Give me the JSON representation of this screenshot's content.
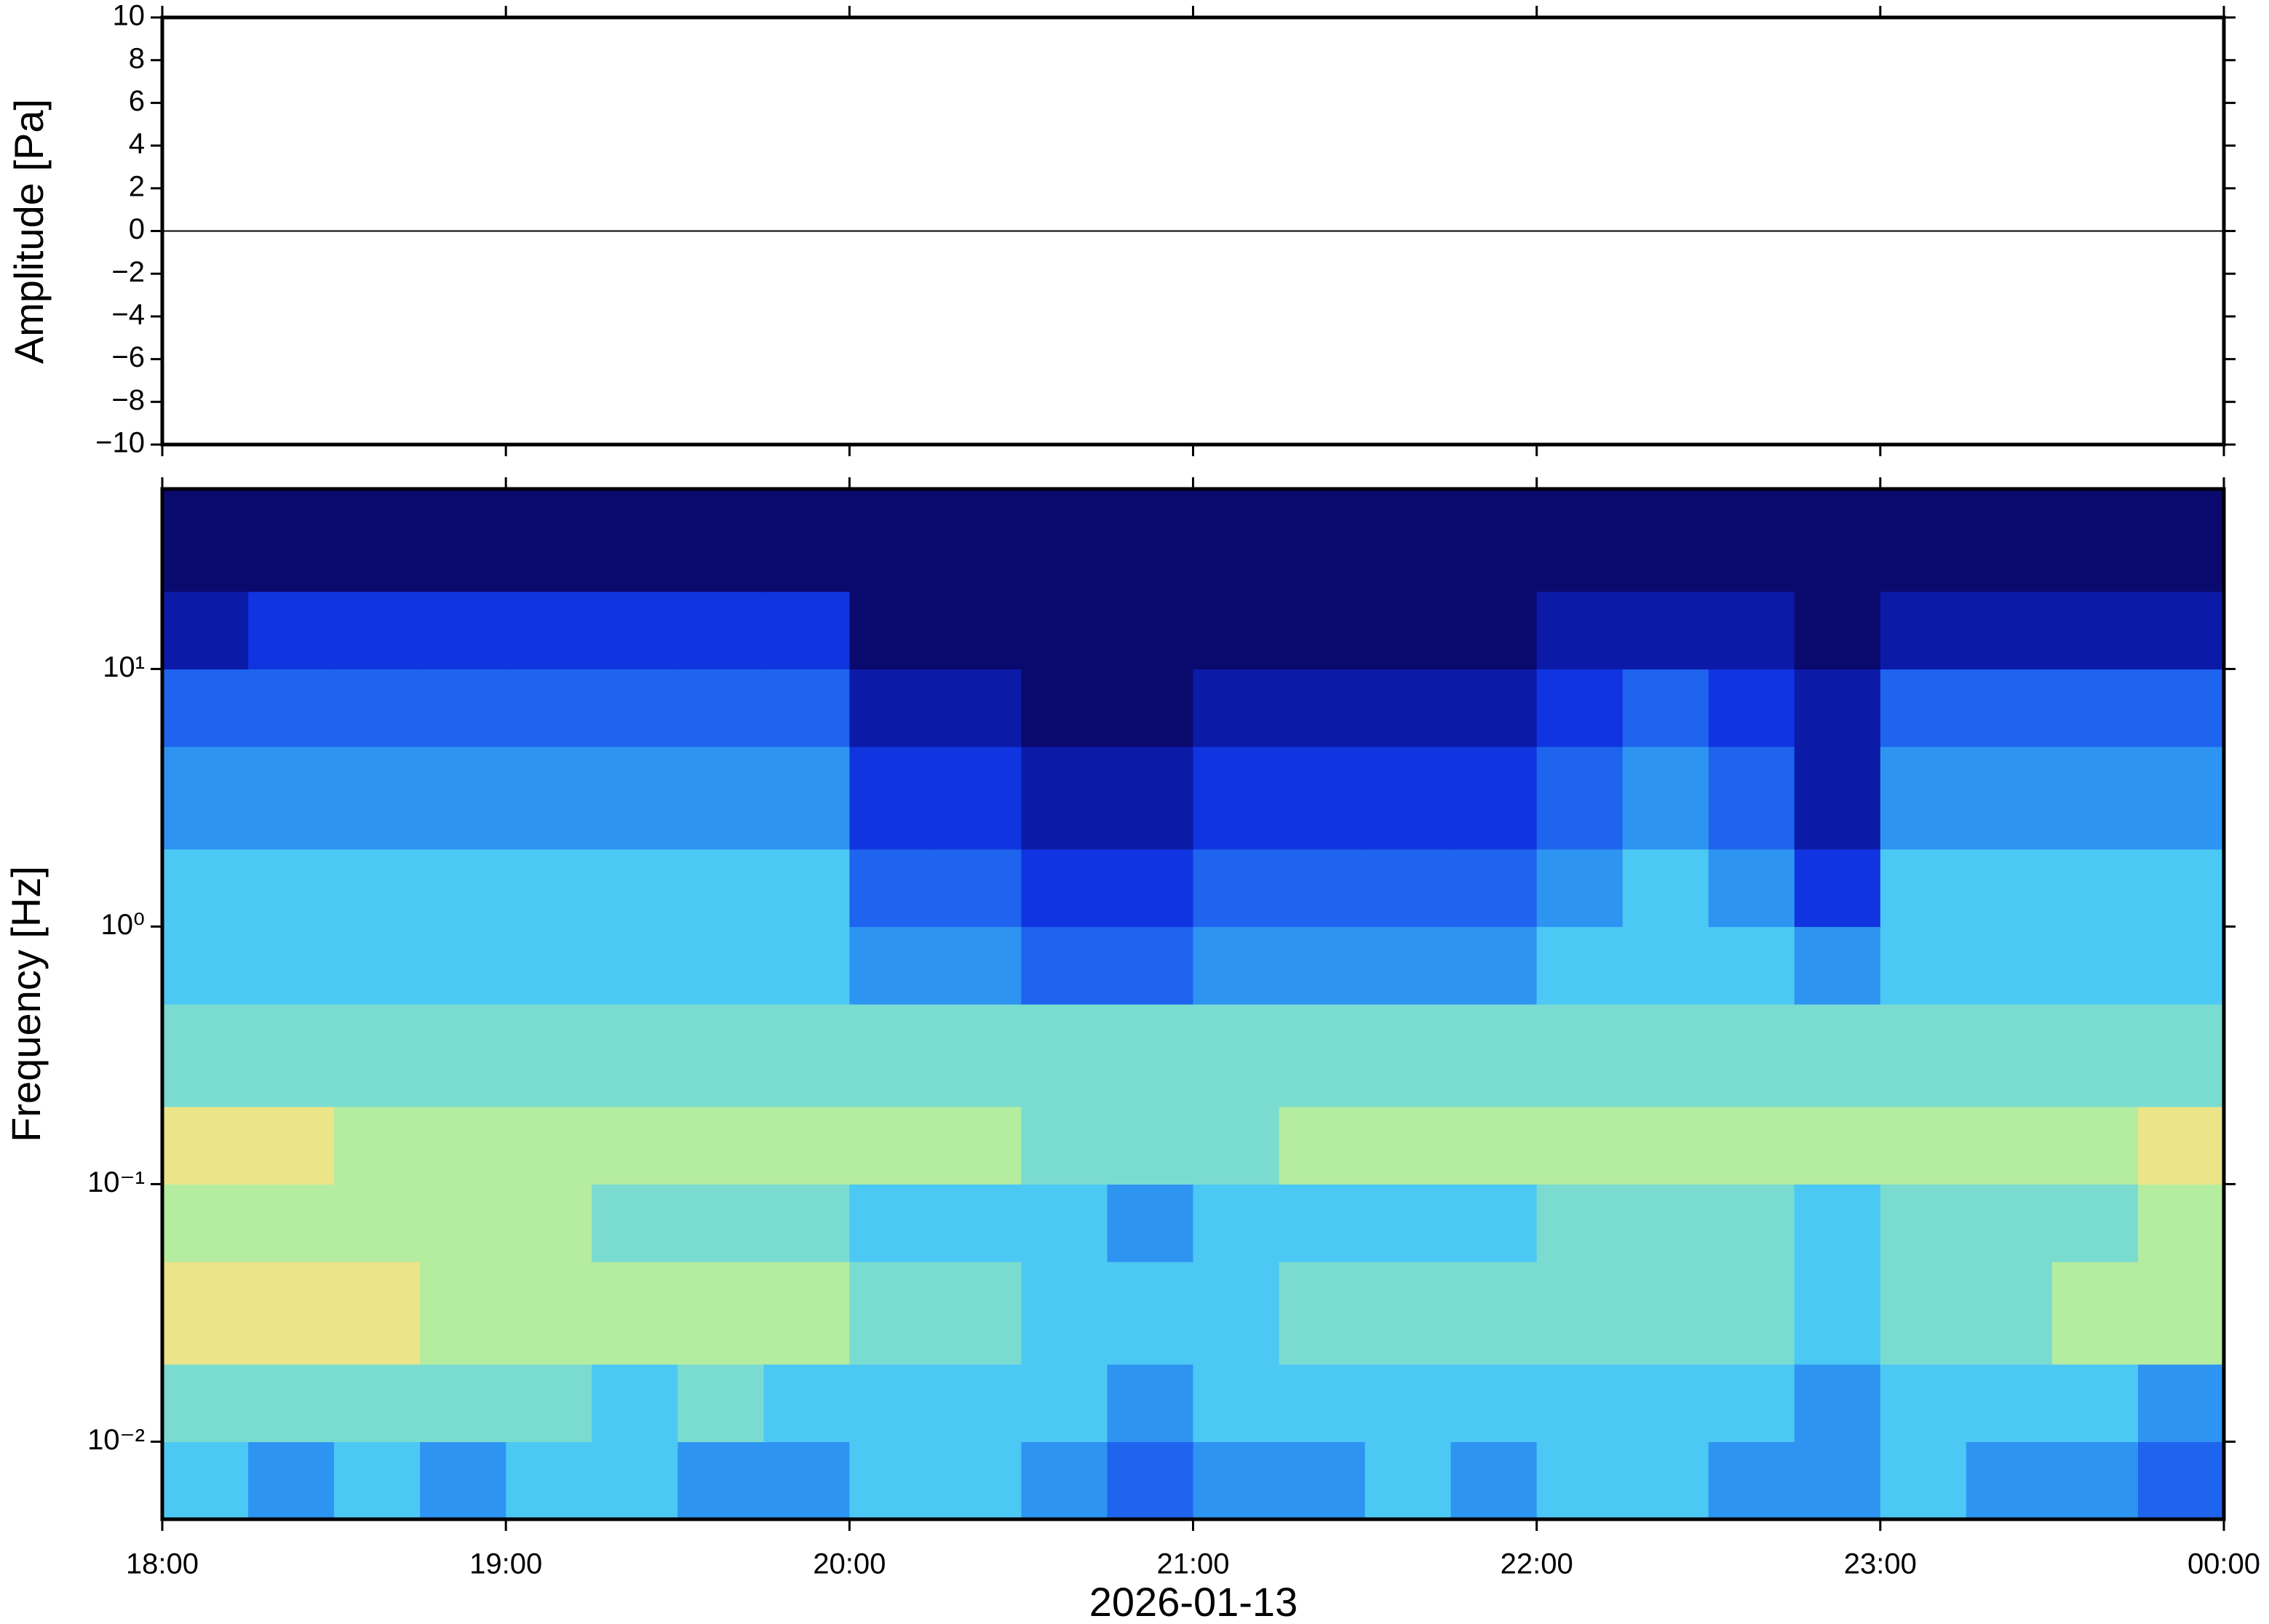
{
  "chart_data": [
    {
      "type": "line",
      "ylabel": "Amplitude [Pa]",
      "color": "#000000",
      "x": [
        18,
        18.5,
        19,
        19.5,
        20,
        20.5,
        21,
        21.5,
        22,
        22.5,
        23,
        23.5,
        24
      ],
      "values": [
        0,
        0,
        0,
        0,
        0,
        0,
        0,
        0,
        0,
        0,
        0,
        0,
        0
      ],
      "xlim": [
        18,
        24
      ],
      "xticks": [
        18,
        19,
        20,
        21,
        22,
        23,
        24
      ],
      "ylim": [
        -10,
        10
      ],
      "yticks": [
        {
          "value": -10,
          "label": "−10"
        },
        {
          "value": -8,
          "label": "−8"
        },
        {
          "value": -6,
          "label": "−6"
        },
        {
          "value": -4,
          "label": "−4"
        },
        {
          "value": -2,
          "label": "−2"
        },
        0,
        2,
        4,
        6,
        8,
        10
      ]
    },
    {
      "type": "heatmap",
      "ylabel": "Frequency [Hz]",
      "xlabel": "2026-01-13",
      "log_y": true,
      "xlim": [
        18,
        24
      ],
      "xticks": [
        {
          "value": 18,
          "label": "18:00"
        },
        {
          "value": 19,
          "label": "19:00"
        },
        {
          "value": 20,
          "label": "20:00"
        },
        {
          "value": 21,
          "label": "21:00"
        },
        {
          "value": 22,
          "label": "22:00"
        },
        {
          "value": 23,
          "label": "23:00"
        },
        {
          "value": 24,
          "label": "00:00"
        }
      ],
      "ylim": [
        0.005,
        50
      ],
      "yticks": [
        {
          "value": 0.01,
          "label": "10⁻²"
        },
        {
          "value": 0.1,
          "label": "10⁻¹"
        },
        {
          "value": 1,
          "label": "10⁰"
        },
        {
          "value": 10,
          "label": "10¹"
        }
      ],
      "xbins": [
        18,
        18.25,
        18.5,
        18.75,
        19,
        19.25,
        19.5,
        19.75,
        20,
        20.25,
        20.5,
        20.75,
        21,
        21.25,
        21.5,
        21.75,
        22,
        22.25,
        22.5,
        22.75,
        23,
        23.25,
        23.5,
        23.75,
        24
      ],
      "ybins": [
        0.005,
        0.01,
        0.02,
        0.05,
        0.1,
        0.2,
        0.5,
        1,
        2,
        5,
        10,
        20,
        50
      ],
      "zlim": [
        0,
        10
      ],
      "colorscale": [
        "#0a0a6e",
        "#0c1aa8",
        "#1034e0",
        "#1e64ee",
        "#2e94f2",
        "#4cc8f4",
        "#7adcd0",
        "#b4eca0",
        "#ece488",
        "#f0a868",
        "#e86040"
      ],
      "z": [
        [
          5,
          4,
          5,
          4,
          5,
          5,
          4,
          4,
          5,
          5,
          4,
          3,
          4,
          4,
          5,
          4,
          5,
          5,
          4,
          4,
          5,
          4,
          4,
          3
        ],
        [
          6,
          6,
          6,
          6,
          6,
          5,
          6,
          5,
          5,
          5,
          5,
          4,
          5,
          5,
          5,
          5,
          5,
          5,
          5,
          4,
          5,
          5,
          5,
          4
        ],
        [
          8,
          8,
          8,
          7,
          7,
          7,
          7,
          7,
          6,
          6,
          5,
          5,
          5,
          6,
          6,
          6,
          6,
          6,
          6,
          5,
          6,
          6,
          7,
          7
        ],
        [
          7,
          7,
          7,
          7,
          7,
          6,
          6,
          6,
          5,
          5,
          5,
          4,
          5,
          5,
          5,
          5,
          6,
          6,
          6,
          5,
          6,
          6,
          6,
          7
        ],
        [
          8,
          8,
          7,
          7,
          7,
          7,
          7,
          7,
          7,
          7,
          6,
          6,
          6,
          7,
          7,
          7,
          7,
          7,
          7,
          7,
          7,
          7,
          7,
          8
        ],
        [
          6,
          6,
          6,
          6,
          6,
          6,
          6,
          6,
          6,
          6,
          6,
          6,
          6,
          6,
          6,
          6,
          6,
          6,
          6,
          6,
          6,
          6,
          6,
          6
        ],
        [
          5,
          5,
          5,
          5,
          5,
          5,
          5,
          5,
          4,
          4,
          3,
          3,
          4,
          4,
          4,
          4,
          5,
          5,
          5,
          4,
          5,
          5,
          5,
          5
        ],
        [
          5,
          5,
          5,
          5,
          5,
          5,
          5,
          5,
          3,
          3,
          2,
          2,
          3,
          3,
          3,
          3,
          4,
          5,
          4,
          2,
          5,
          5,
          5,
          5
        ],
        [
          4,
          4,
          4,
          4,
          4,
          4,
          4,
          4,
          2,
          2,
          1,
          1,
          2,
          2,
          2,
          2,
          3,
          4,
          3,
          1,
          4,
          4,
          4,
          4
        ],
        [
          3,
          3,
          3,
          3,
          3,
          3,
          3,
          3,
          1,
          1,
          0,
          0,
          1,
          1,
          1,
          1,
          2,
          3,
          2,
          1,
          3,
          3,
          3,
          3
        ],
        [
          1,
          2,
          2,
          2,
          2,
          2,
          2,
          2,
          0,
          0,
          0,
          0,
          0,
          0,
          0,
          0,
          1,
          1,
          1,
          0,
          1,
          1,
          1,
          1
        ],
        [
          0,
          0,
          0,
          0,
          0,
          0,
          0,
          0,
          0,
          0,
          0,
          0,
          0,
          0,
          0,
          0,
          0,
          0,
          0,
          0,
          0,
          0,
          0,
          0
        ]
      ]
    }
  ]
}
